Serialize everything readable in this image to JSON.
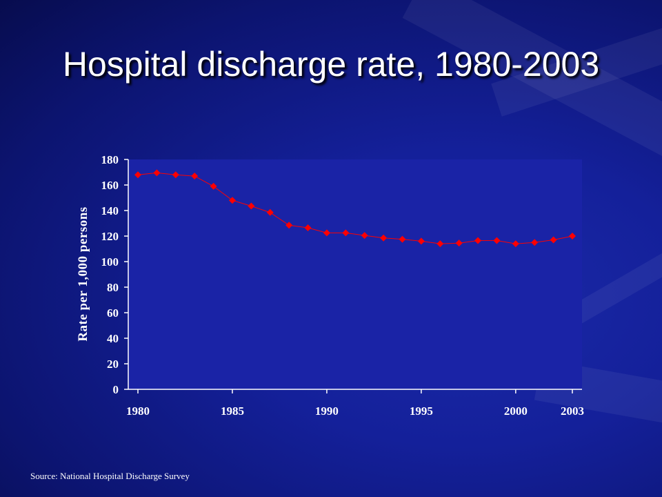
{
  "slide": {
    "title": "Hospital discharge rate, 1980-2003",
    "source": "Source:  National Hospital Discharge Survey"
  },
  "colors": {
    "background": "#14209a",
    "plot_area": "#1a23a6",
    "series": "#ff0000",
    "text": "#ffffff"
  },
  "chart_data": {
    "type": "line",
    "title": "Hospital discharge rate, 1980-2003",
    "xlabel": "",
    "ylabel": "Rate per 1,000 persons",
    "x": [
      1980,
      1981,
      1982,
      1983,
      1984,
      1985,
      1986,
      1987,
      1988,
      1989,
      1990,
      1991,
      1992,
      1993,
      1994,
      1995,
      1996,
      1997,
      1998,
      1999,
      2000,
      2001,
      2002,
      2003
    ],
    "x_tick_labels": [
      "1980",
      "1985",
      "1990",
      "1995",
      "2000",
      "2003"
    ],
    "x_tick_values": [
      1980,
      1985,
      1990,
      1995,
      2000,
      2003
    ],
    "y_ticks": [
      0,
      20,
      40,
      60,
      80,
      100,
      120,
      140,
      160,
      180
    ],
    "ylim": [
      0,
      180
    ],
    "grid": false,
    "legend": "none",
    "series": [
      {
        "marker": "diamond",
        "values": [
          168,
          169.5,
          168,
          167,
          159,
          148,
          143.5,
          138.5,
          128.5,
          126.5,
          122.5,
          122.5,
          120.5,
          118.5,
          117.5,
          116,
          114,
          114.5,
          116.5,
          116.5,
          114,
          115,
          117,
          120
        ]
      }
    ]
  }
}
